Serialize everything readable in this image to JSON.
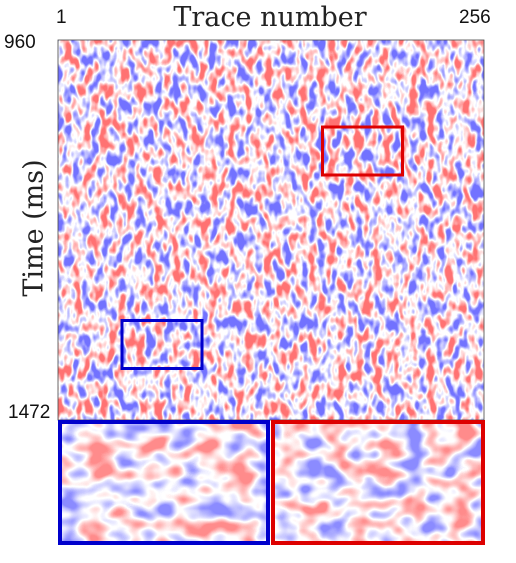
{
  "figure": {
    "xlabel": "Trace number",
    "ylabel": "Time (ms)",
    "x_ticks": [
      "1",
      "256"
    ],
    "y_ticks": [
      "960",
      "1472"
    ],
    "colors": {
      "positive": "#ff0000",
      "negative": "#0000ff",
      "background": "#ffffff",
      "highlight_blue": "#0000cc",
      "highlight_red": "#dd0000"
    },
    "panels": {
      "main": "seismic-section",
      "zoom_left": "zoom-of-blue-box",
      "zoom_right": "zoom-of-red-box"
    }
  }
}
